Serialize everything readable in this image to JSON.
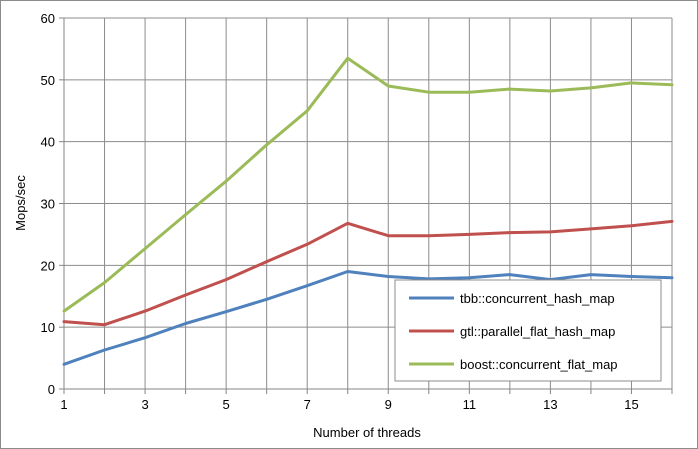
{
  "chart_data": {
    "type": "line",
    "xlabel": "Number of threads",
    "ylabel": "Mops/sec",
    "xlim": [
      1,
      16
    ],
    "ylim": [
      0,
      60
    ],
    "x": [
      1,
      2,
      3,
      4,
      5,
      6,
      7,
      8,
      9,
      10,
      11,
      12,
      13,
      14,
      15,
      16
    ],
    "xticks": [
      1,
      3,
      5,
      7,
      9,
      11,
      13,
      15
    ],
    "yticks": [
      0,
      10,
      20,
      30,
      40,
      50,
      60
    ],
    "grid": true,
    "legend": "bottom-right",
    "series": [
      {
        "name": "tbb::concurrent_hash_map",
        "color": "#4f81bd",
        "values": [
          4.0,
          6.3,
          8.3,
          10.6,
          12.5,
          14.5,
          16.7,
          19.0,
          18.2,
          17.8,
          18.0,
          18.5,
          17.7,
          18.5,
          18.2,
          18.0
        ]
      },
      {
        "name": "gtl::parallel_flat_hash_map",
        "color": "#c0504d",
        "values": [
          10.9,
          10.4,
          12.6,
          15.2,
          17.7,
          20.6,
          23.4,
          26.8,
          24.8,
          24.8,
          25.0,
          25.3,
          25.4,
          25.9,
          26.4,
          27.1
        ]
      },
      {
        "name": "boost::concurrent_flat_map",
        "color": "#9bbb59",
        "values": [
          12.6,
          17.2,
          22.7,
          28.2,
          33.6,
          39.5,
          45.0,
          53.5,
          49.0,
          48.0,
          48.0,
          48.5,
          48.2,
          48.7,
          49.5,
          49.2
        ]
      }
    ]
  }
}
